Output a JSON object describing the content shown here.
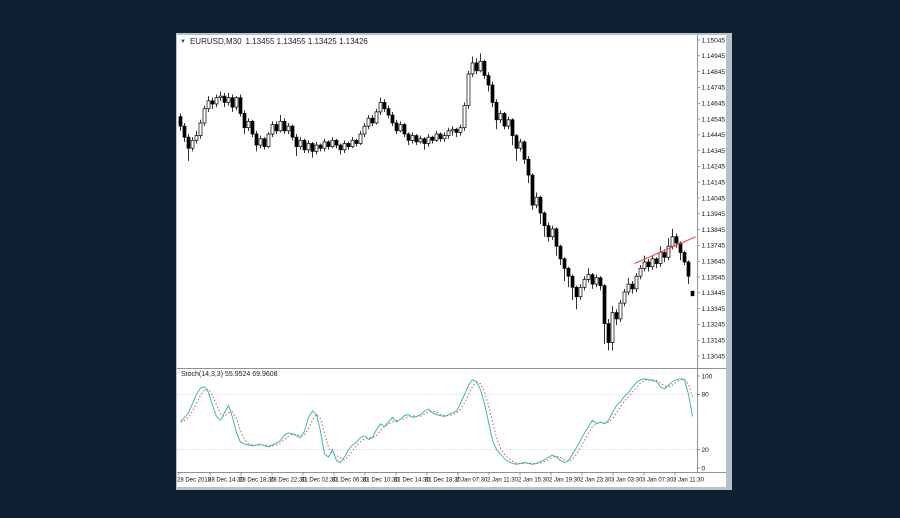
{
  "window": {
    "title_symbol": "EURUSD,M30",
    "title_quotes": "1.13455 1.13455 1.13425 1.13426",
    "collapse_icon": "▼"
  },
  "price_axis": {
    "labels": [
      "1.15045",
      "1.14945",
      "1.14845",
      "1.14745",
      "1.14645",
      "1.14545",
      "1.14445",
      "1.14345",
      "1.14245",
      "1.14145",
      "1.14045",
      "1.13945",
      "1.13845",
      "1.13745",
      "1.13645",
      "1.13545",
      "1.13445",
      "1.13345",
      "1.13245",
      "1.13145",
      "1.13045"
    ],
    "step": 0.001
  },
  "time_axis": {
    "labels": [
      "28 Dec 2018",
      "28 Dec 14:30",
      "28 Dec 18:30",
      "28 Dec 22:30",
      "31 Dec 02:30",
      "31 Dec 06:30",
      "31 Dec 10:30",
      "31 Dec 14:30",
      "31 Dec 18:30",
      "2 Jan 07:30",
      "2 Jan 11:30",
      "2 Jan 15:30",
      "2 Jan 19:30",
      "2 Jan 23:30",
      "3 Jan 03:30",
      "3 Jan 07:30",
      "3 Jan 11:30"
    ],
    "spacing_px": 31
  },
  "stoch": {
    "label": "Stoch(14,3,3) 55.9524 69.9608",
    "scale": [
      {
        "label": "100",
        "value": 100
      },
      {
        "label": "80",
        "value": 80
      },
      {
        "label": "20",
        "value": 20
      },
      {
        "label": "0",
        "value": 0
      }
    ],
    "gridlines": [
      80,
      20
    ],
    "range": [
      0,
      100
    ]
  },
  "colors": {
    "background": "#0e2133",
    "window_chrome": "#b9c0c6",
    "chart_bg": "#ffffff",
    "bull_candle": "#ffffff",
    "bear_candle": "#000000",
    "candle_outline": "#000000",
    "stoch_k": "#35bdb5",
    "stoch_d": "#f05552",
    "trendline": "#ff4545",
    "grid_dotted": "#b5b5b5",
    "axis_text": "#111111",
    "separator": "#8a949c"
  },
  "chart_data": {
    "type": "candlestick",
    "symbol": "EURUSD",
    "period": "M30",
    "title": "EURUSD,M30 1.13455 1.13455 1.13425 1.13426",
    "price_range": [
      1.13045,
      1.15045
    ],
    "grid": false,
    "candles": [
      [
        1.1456,
        1.1458,
        1.1447,
        1.145
      ],
      [
        1.145,
        1.1452,
        1.144,
        1.1443
      ],
      [
        1.1443,
        1.1445,
        1.1428,
        1.1436
      ],
      [
        1.1436,
        1.1443,
        1.1434,
        1.1441
      ],
      [
        1.1441,
        1.1447,
        1.1439,
        1.1444
      ],
      [
        1.1444,
        1.1454,
        1.1442,
        1.1452
      ],
      [
        1.1452,
        1.1463,
        1.145,
        1.1461
      ],
      [
        1.1461,
        1.1469,
        1.1459,
        1.1466
      ],
      [
        1.1466,
        1.1468,
        1.1461,
        1.1464
      ],
      [
        1.1464,
        1.147,
        1.1462,
        1.1468
      ],
      [
        1.1468,
        1.1472,
        1.1466,
        1.1469
      ],
      [
        1.1469,
        1.1471,
        1.1462,
        1.1465
      ],
      [
        1.1465,
        1.1471,
        1.1463,
        1.1468
      ],
      [
        1.1468,
        1.147,
        1.1459,
        1.1462
      ],
      [
        1.1462,
        1.1469,
        1.146,
        1.1468
      ],
      [
        1.1468,
        1.147,
        1.1456,
        1.1458
      ],
      [
        1.1458,
        1.146,
        1.1445,
        1.1449
      ],
      [
        1.1449,
        1.1455,
        1.1447,
        1.1453
      ],
      [
        1.1453,
        1.1454,
        1.1443,
        1.1445
      ],
      [
        1.1445,
        1.1447,
        1.1434,
        1.1438
      ],
      [
        1.1438,
        1.1444,
        1.1436,
        1.1442
      ],
      [
        1.1442,
        1.1443,
        1.1435,
        1.1437
      ],
      [
        1.1437,
        1.1446,
        1.1436,
        1.1445
      ],
      [
        1.1445,
        1.1453,
        1.1443,
        1.1451
      ],
      [
        1.1451,
        1.1453,
        1.1445,
        1.1447
      ],
      [
        1.1447,
        1.1457,
        1.1446,
        1.1453
      ],
      [
        1.1453,
        1.1455,
        1.1445,
        1.1447
      ],
      [
        1.1447,
        1.1452,
        1.1445,
        1.145
      ],
      [
        1.145,
        1.1451,
        1.1441,
        1.1443
      ],
      [
        1.1443,
        1.1445,
        1.1431,
        1.1437
      ],
      [
        1.1437,
        1.1443,
        1.1435,
        1.1441
      ],
      [
        1.1441,
        1.1442,
        1.1433,
        1.1435
      ],
      [
        1.1435,
        1.1441,
        1.1433,
        1.1439
      ],
      [
        1.1439,
        1.144,
        1.143,
        1.1434
      ],
      [
        1.1434,
        1.144,
        1.1432,
        1.1438
      ],
      [
        1.1438,
        1.1439,
        1.1434,
        1.1436
      ],
      [
        1.1436,
        1.1442,
        1.1434,
        1.144
      ],
      [
        1.144,
        1.1441,
        1.1435,
        1.1437
      ],
      [
        1.1437,
        1.1443,
        1.1436,
        1.1441
      ],
      [
        1.1441,
        1.1442,
        1.1436,
        1.1438
      ],
      [
        1.1438,
        1.1439,
        1.1432,
        1.1435
      ],
      [
        1.1435,
        1.1441,
        1.1433,
        1.1439
      ],
      [
        1.1439,
        1.144,
        1.1435,
        1.1437
      ],
      [
        1.1437,
        1.1443,
        1.1436,
        1.1441
      ],
      [
        1.1441,
        1.1442,
        1.1437,
        1.1439
      ],
      [
        1.1439,
        1.1447,
        1.1438,
        1.1445
      ],
      [
        1.1445,
        1.1452,
        1.1443,
        1.145
      ],
      [
        1.145,
        1.1457,
        1.1448,
        1.1455
      ],
      [
        1.1455,
        1.1457,
        1.145,
        1.1452
      ],
      [
        1.1452,
        1.1461,
        1.1451,
        1.1459
      ],
      [
        1.1459,
        1.1468,
        1.1457,
        1.1465
      ],
      [
        1.1465,
        1.1467,
        1.1459,
        1.1461
      ],
      [
        1.1461,
        1.1463,
        1.1455,
        1.1457
      ],
      [
        1.1457,
        1.1459,
        1.145,
        1.1452
      ],
      [
        1.1452,
        1.1454,
        1.1445,
        1.1447
      ],
      [
        1.1447,
        1.1453,
        1.1446,
        1.1451
      ],
      [
        1.1451,
        1.1452,
        1.1443,
        1.1445
      ],
      [
        1.1445,
        1.1446,
        1.1438,
        1.1441
      ],
      [
        1.1441,
        1.1446,
        1.1439,
        1.1444
      ],
      [
        1.1444,
        1.1445,
        1.1438,
        1.144
      ],
      [
        1.144,
        1.1444,
        1.1439,
        1.1442
      ],
      [
        1.1442,
        1.1443,
        1.1435,
        1.1439
      ],
      [
        1.1439,
        1.1445,
        1.1437,
        1.1443
      ],
      [
        1.1443,
        1.1444,
        1.1439,
        1.1441
      ],
      [
        1.1441,
        1.1447,
        1.144,
        1.1445
      ],
      [
        1.1445,
        1.1446,
        1.144,
        1.1442
      ],
      [
        1.1442,
        1.1446,
        1.144,
        1.1444
      ],
      [
        1.1444,
        1.1449,
        1.1442,
        1.1447
      ],
      [
        1.1447,
        1.145,
        1.1444,
        1.1448
      ],
      [
        1.1448,
        1.1449,
        1.1443,
        1.1446
      ],
      [
        1.1446,
        1.1451,
        1.1444,
        1.1449
      ],
      [
        1.1449,
        1.1465,
        1.1447,
        1.1463
      ],
      [
        1.1463,
        1.1485,
        1.1461,
        1.1483
      ],
      [
        1.1483,
        1.1494,
        1.1481,
        1.149
      ],
      [
        1.149,
        1.1493,
        1.1483,
        1.1485
      ],
      [
        1.1485,
        1.1496,
        1.1484,
        1.1491
      ],
      [
        1.1491,
        1.1492,
        1.148,
        1.1482
      ],
      [
        1.1482,
        1.1484,
        1.1472,
        1.1476
      ],
      [
        1.1476,
        1.1478,
        1.1462,
        1.1465
      ],
      [
        1.1465,
        1.1467,
        1.1448,
        1.1454
      ],
      [
        1.1454,
        1.146,
        1.1452,
        1.1458
      ],
      [
        1.1458,
        1.1459,
        1.1448,
        1.145
      ],
      [
        1.145,
        1.1456,
        1.1448,
        1.1454
      ],
      [
        1.1454,
        1.1455,
        1.1438,
        1.1444
      ],
      [
        1.1444,
        1.1445,
        1.1428,
        1.1436
      ],
      [
        1.1436,
        1.1442,
        1.1434,
        1.144
      ],
      [
        1.144,
        1.1441,
        1.1426,
        1.1429
      ],
      [
        1.1429,
        1.1431,
        1.1414,
        1.1419
      ],
      [
        1.1419,
        1.142,
        1.1397,
        1.14
      ],
      [
        1.14,
        1.1408,
        1.1398,
        1.1405
      ],
      [
        1.1405,
        1.1406,
        1.1388,
        1.1395
      ],
      [
        1.1395,
        1.1396,
        1.138,
        1.1387
      ],
      [
        1.1387,
        1.1389,
        1.1377,
        1.138
      ],
      [
        1.138,
        1.1387,
        1.1378,
        1.1385
      ],
      [
        1.1385,
        1.1386,
        1.1368,
        1.1374
      ],
      [
        1.1374,
        1.1375,
        1.1362,
        1.1366
      ],
      [
        1.1366,
        1.1367,
        1.1352,
        1.136
      ],
      [
        1.136,
        1.1361,
        1.1348,
        1.1355
      ],
      [
        1.1355,
        1.1356,
        1.134,
        1.1348
      ],
      [
        1.1348,
        1.1349,
        1.1334,
        1.1342
      ],
      [
        1.1342,
        1.135,
        1.134,
        1.1348
      ],
      [
        1.1348,
        1.1355,
        1.1346,
        1.1353
      ],
      [
        1.1353,
        1.136,
        1.1351,
        1.1356
      ],
      [
        1.1356,
        1.1357,
        1.1347,
        1.135
      ],
      [
        1.135,
        1.1356,
        1.1348,
        1.1354
      ],
      [
        1.1354,
        1.1355,
        1.1346,
        1.1349
      ],
      [
        1.1349,
        1.135,
        1.1312,
        1.1325
      ],
      [
        1.1325,
        1.1328,
        1.1308,
        1.1313
      ],
      [
        1.1313,
        1.1336,
        1.1308,
        1.1332
      ],
      [
        1.1332,
        1.1334,
        1.1324,
        1.1328
      ],
      [
        1.1328,
        1.134,
        1.1326,
        1.1338
      ],
      [
        1.1338,
        1.1347,
        1.1336,
        1.1345
      ],
      [
        1.1345,
        1.1354,
        1.1343,
        1.135
      ],
      [
        1.135,
        1.1352,
        1.1344,
        1.1347
      ],
      [
        1.1347,
        1.1357,
        1.1345,
        1.1355
      ],
      [
        1.1355,
        1.1362,
        1.1353,
        1.136
      ],
      [
        1.136,
        1.1368,
        1.1358,
        1.1364
      ],
      [
        1.1364,
        1.1366,
        1.1358,
        1.1361
      ],
      [
        1.1361,
        1.1368,
        1.1359,
        1.1366
      ],
      [
        1.1366,
        1.1367,
        1.136,
        1.1363
      ],
      [
        1.1363,
        1.1374,
        1.1361,
        1.137
      ],
      [
        1.137,
        1.1372,
        1.1364,
        1.1367
      ],
      [
        1.1367,
        1.1379,
        1.1365,
        1.1374
      ],
      [
        1.1374,
        1.1385,
        1.1372,
        1.138
      ],
      [
        1.138,
        1.1382,
        1.1373,
        1.1376
      ],
      [
        1.1376,
        1.1377,
        1.1365,
        1.137
      ],
      [
        1.137,
        1.1371,
        1.1362,
        1.1364
      ],
      [
        1.1364,
        1.1365,
        1.135,
        1.1355
      ],
      [
        1.13455,
        1.13455,
        1.13425,
        1.13426
      ]
    ],
    "trendline": {
      "from_bar": 113.5,
      "from_price": 1.1363,
      "to_bar": 128.8,
      "to_price": 1.138,
      "color": "#ff4545"
    },
    "stochastic": {
      "name": "Stoch(14,3,3)",
      "k_period": 14,
      "d_period": 3,
      "slowing": 3,
      "current_k": 55.9524,
      "current_d": 69.9608,
      "range": [
        0,
        100
      ],
      "k_values": [
        50,
        55,
        60,
        70,
        80,
        87,
        88,
        82,
        68,
        56,
        52,
        60,
        68,
        55,
        38,
        28,
        26,
        25,
        24,
        25,
        26,
        24,
        23,
        25,
        27,
        30,
        36,
        38,
        37,
        35,
        33,
        40,
        55,
        62,
        58,
        40,
        15,
        12,
        20,
        8,
        6,
        12,
        20,
        25,
        28,
        33,
        35,
        31,
        33,
        42,
        48,
        45,
        50,
        55,
        50,
        53,
        57,
        58,
        55,
        56,
        58,
        62,
        64,
        60,
        58,
        57,
        56,
        58,
        60,
        62,
        70,
        80,
        90,
        96,
        94,
        85,
        70,
        50,
        30,
        20,
        15,
        10,
        7,
        5,
        4,
        5,
        6,
        5,
        4,
        5,
        7,
        9,
        12,
        14,
        12,
        8,
        6,
        8,
        15,
        22,
        30,
        38,
        45,
        52,
        48,
        50,
        48,
        52,
        60,
        68,
        72,
        78,
        82,
        88,
        93,
        96,
        97,
        96,
        95,
        94,
        88,
        86,
        90,
        94,
        96,
        97,
        96,
        80,
        56
      ]
    }
  }
}
